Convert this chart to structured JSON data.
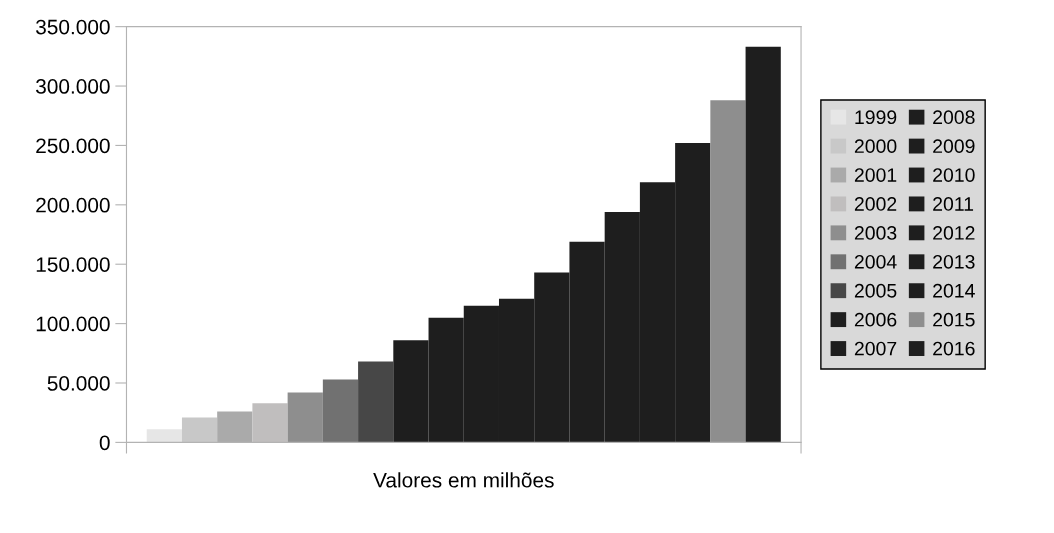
{
  "chart_data": {
    "type": "bar",
    "xlabel": "Valores em milhões",
    "categories": [
      null
    ],
    "series": [
      {
        "name": "1999",
        "color": "#e6e6e6",
        "values": [
          11000
        ]
      },
      {
        "name": "2000",
        "color": "#c8c8c8",
        "values": [
          21000
        ]
      },
      {
        "name": "2001",
        "color": "#aaaaaa",
        "values": [
          26000
        ]
      },
      {
        "name": "2002",
        "color": "#c0bebe",
        "values": [
          33000
        ]
      },
      {
        "name": "2003",
        "color": "#8e8e8e",
        "values": [
          42000
        ]
      },
      {
        "name": "2004",
        "color": "#717171",
        "values": [
          53000
        ]
      },
      {
        "name": "2005",
        "color": "#474747",
        "values": [
          68000
        ]
      },
      {
        "name": "2006",
        "color": "#1e1e1e",
        "values": [
          86000
        ]
      },
      {
        "name": "2007",
        "color": "#1e1e1e",
        "values": [
          105000
        ]
      },
      {
        "name": "2008",
        "color": "#1e1e1e",
        "values": [
          115000
        ]
      },
      {
        "name": "2009",
        "color": "#1e1e1e",
        "values": [
          121000
        ]
      },
      {
        "name": "2010",
        "color": "#1e1e1e",
        "values": [
          143000
        ]
      },
      {
        "name": "2011",
        "color": "#1e1e1e",
        "values": [
          169000
        ]
      },
      {
        "name": "2012",
        "color": "#1e1e1e",
        "values": [
          194000
        ]
      },
      {
        "name": "2013",
        "color": "#1e1e1e",
        "values": [
          219000
        ]
      },
      {
        "name": "2014",
        "color": "#1e1e1e",
        "values": [
          252000
        ]
      },
      {
        "name": "2015",
        "color": "#8e8e8e",
        "values": [
          288000
        ]
      },
      {
        "name": "2016",
        "color": "#1e1e1e",
        "values": [
          333000
        ]
      }
    ],
    "ylim": [
      0,
      350000
    ],
    "yticks": [
      {
        "value": 0,
        "label": "0"
      },
      {
        "value": 50000,
        "label": "50.000"
      },
      {
        "value": 100000,
        "label": "100.000"
      },
      {
        "value": 150000,
        "label": "150.000"
      },
      {
        "value": 200000,
        "label": "200.000"
      },
      {
        "value": 250000,
        "label": "250.000"
      },
      {
        "value": 300000,
        "label": "300.000"
      },
      {
        "value": 350000,
        "label": "350.000"
      }
    ],
    "grid": false,
    "legend": "right"
  }
}
